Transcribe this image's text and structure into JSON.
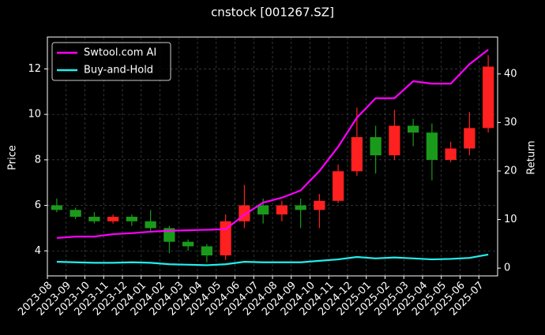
{
  "chart_data": {
    "type": "candlestick",
    "title": "cnstock [001267.SZ]",
    "ylabel": "Price",
    "y2label": "Return",
    "x": [
      "2023-08",
      "2023-09",
      "2023-10",
      "2023-11",
      "2023-12",
      "2024-01",
      "2024-02",
      "2024-03",
      "2024-04",
      "2024-05",
      "2024-06",
      "2024-07",
      "2024-08",
      "2024-09",
      "2024-10",
      "2024-11",
      "2024-12",
      "2025-01",
      "2025-02",
      "2025-03",
      "2025-04",
      "2025-05",
      "2025-06",
      "2025-07"
    ],
    "open": [
      6.0,
      5.8,
      5.5,
      5.3,
      5.5,
      5.3,
      5.0,
      4.4,
      4.2,
      3.8,
      5.3,
      6.0,
      5.6,
      6.0,
      5.8,
      6.2,
      7.5,
      9.0,
      8.2,
      9.5,
      9.2,
      8.0,
      8.5,
      9.4
    ],
    "high": [
      6.3,
      5.9,
      5.7,
      5.6,
      5.6,
      5.8,
      5.1,
      4.5,
      4.3,
      5.6,
      6.9,
      6.3,
      6.2,
      6.3,
      6.5,
      7.8,
      10.3,
      9.5,
      10.2,
      9.8,
      9.6,
      8.8,
      10.1,
      12.6
    ],
    "low": [
      5.7,
      5.4,
      5.2,
      5.2,
      5.1,
      4.8,
      3.9,
      4.0,
      3.5,
      3.6,
      5.0,
      5.2,
      5.3,
      5.0,
      5.0,
      6.1,
      7.3,
      7.4,
      8.0,
      8.6,
      7.1,
      7.9,
      8.2,
      9.2
    ],
    "close": [
      5.8,
      5.5,
      5.3,
      5.5,
      5.3,
      5.0,
      4.4,
      4.2,
      3.8,
      5.3,
      6.0,
      5.6,
      6.0,
      5.8,
      6.2,
      7.5,
      9.0,
      8.2,
      9.5,
      9.2,
      8.0,
      8.5,
      9.4,
      12.1
    ],
    "up_color": "#ff2020",
    "down_color": "#1a9a1a",
    "series": [
      {
        "name": "Swtool.com AI",
        "color": "#ff00ff",
        "axis": "y2",
        "values": [
          6.2,
          6.5,
          6.5,
          7.0,
          7.2,
          7.5,
          7.7,
          7.8,
          7.9,
          8.0,
          11,
          13.5,
          14.5,
          16,
          20,
          25,
          31,
          35,
          35,
          38.5,
          38,
          38,
          42,
          45
        ]
      },
      {
        "name": "Buy-and-Hold",
        "color": "#22eeee",
        "axis": "y2",
        "values": [
          1.3,
          1.2,
          1.1,
          1.1,
          1.2,
          1.1,
          0.8,
          0.7,
          0.6,
          0.8,
          1.3,
          1.2,
          1.2,
          1.2,
          1.5,
          1.8,
          2.3,
          2.0,
          2.2,
          2.0,
          1.8,
          1.9,
          2.1,
          2.8
        ]
      }
    ],
    "xlim": [
      "2023-08",
      "2025-08"
    ],
    "xticks": [
      "2023-08",
      "2023-09",
      "2023-10",
      "2023-11",
      "2023-12",
      "2024-01",
      "2024-02",
      "2024-03",
      "2024-04",
      "2024-05",
      "2024-06",
      "2024-07",
      "2024-08",
      "2024-09",
      "2024-10",
      "2024-11",
      "2024-12",
      "2025-01",
      "2025-02",
      "2025-03",
      "2025-04",
      "2025-05",
      "2025-06",
      "2025-07"
    ],
    "ylim": [
      2.9,
      13.4
    ],
    "yticks": [
      4,
      6,
      8,
      10,
      12
    ],
    "y2lim": [
      -1.6,
      47.6
    ],
    "y2ticks": [
      0,
      10,
      20,
      30,
      40
    ],
    "grid": true,
    "legend": "upper-left"
  }
}
